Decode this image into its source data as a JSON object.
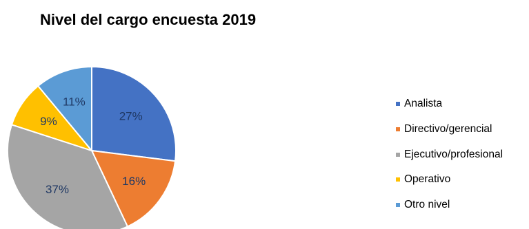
{
  "chart_data": {
    "type": "pie",
    "title": "Nivel del cargo encuesta 2019",
    "categories": [
      "Analista",
      "Directivo/gerencial",
      "Ejecutivo/profesional",
      "Operativo",
      "Otro nivel"
    ],
    "values": [
      27,
      16,
      37,
      9,
      11
    ],
    "value_labels": [
      "27%",
      "16%",
      "37%",
      "9%",
      "11%"
    ],
    "colors": [
      "#4472c4",
      "#ed7d31",
      "#a5a5a5",
      "#ffc000",
      "#5b9bd5"
    ],
    "legend_position": "right"
  }
}
